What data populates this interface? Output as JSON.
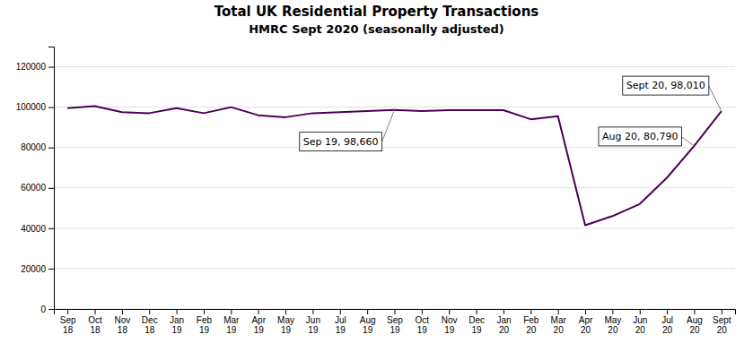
{
  "chart_data": {
    "type": "line",
    "title": "Total UK Residential Property Transactions",
    "subtitle": "HMRC Sept 2020 (seasonally adjusted)",
    "categories": [
      "Sep\n18",
      "Oct\n18",
      "Nov\n18",
      "Dec\n18",
      "Jan\n19",
      "Feb\n19",
      "Mar\n19",
      "Apr\n19",
      "May\n19",
      "Jun\n19",
      "Jul\n19",
      "Aug\n19",
      "Sep\n19",
      "Oct\n19",
      "Nov\n19",
      "Dec\n19",
      "Jan\n20",
      "Feb\n20",
      "Mar\n20",
      "Apr\n20",
      "May\n20",
      "Jun\n20",
      "Jul\n20",
      "Aug\n20",
      "Sept\n20"
    ],
    "values": [
      99500,
      100500,
      97500,
      97000,
      99500,
      97000,
      100000,
      96000,
      95000,
      97000,
      97500,
      98000,
      98660,
      98000,
      98500,
      98500,
      98500,
      94000,
      95500,
      41500,
      46000,
      52000,
      65000,
      80790,
      98010
    ],
    "color": "#4B0055",
    "ylim": [
      0,
      130000
    ],
    "yticks": [
      0,
      20000,
      40000,
      60000,
      80000,
      100000,
      120000
    ],
    "grid": true,
    "annotations": [
      {
        "label": "Sep 19, 98,660",
        "x": "Sep\n19",
        "y": 98660
      },
      {
        "label": "Aug 20, 80,790",
        "x": "Aug\n20",
        "y": 80790
      },
      {
        "label": "Sept 20, 98,010",
        "x": "Sept\n20",
        "y": 98010
      }
    ]
  }
}
